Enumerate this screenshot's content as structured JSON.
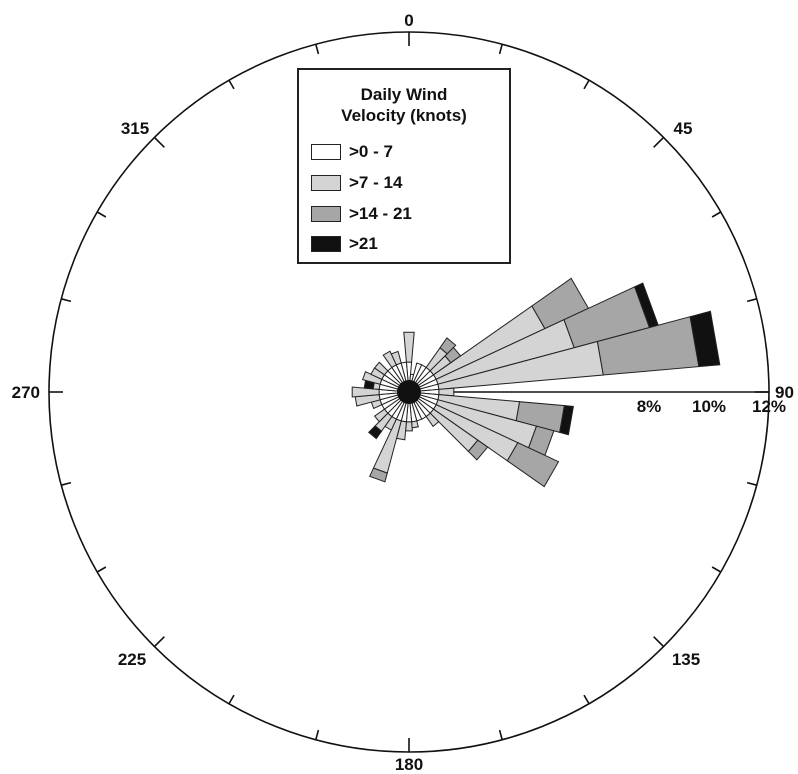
{
  "chart_data": {
    "type": "rose",
    "title_lines": [
      "Daily Wind",
      "Velocity (knots)"
    ],
    "direction_labels": [
      "0",
      "45",
      "90",
      "135",
      "180",
      "225",
      "270",
      "315"
    ],
    "radial_tick_labels": [
      "8%",
      "10%",
      "12%"
    ],
    "radial_unit": "%",
    "radial_max": 12,
    "classes": [
      {
        "name": ">0 - 7",
        "color": "#ffffff"
      },
      {
        "name": ">7 - 14",
        "color": "#d4d4d4"
      },
      {
        "name": ">14 - 21",
        "color": "#a6a6a6"
      },
      {
        "name": ">21",
        "color": "#111111"
      }
    ],
    "sector_width_deg": 10,
    "sectors": [
      {
        "direction": 0,
        "values": [
          1.0,
          1.0,
          0.0,
          0.0
        ]
      },
      {
        "direction": 10,
        "values": [
          0.6,
          0.0,
          0.0,
          0.0
        ]
      },
      {
        "direction": 20,
        "values": [
          1.0,
          0.0,
          0.0,
          0.0
        ]
      },
      {
        "direction": 30,
        "values": [
          1.0,
          0.0,
          0.0,
          0.0
        ]
      },
      {
        "direction": 40,
        "values": [
          1.0,
          0.8,
          0.4,
          0.0
        ]
      },
      {
        "direction": 50,
        "values": [
          1.0,
          0.7,
          0.4,
          0.0
        ]
      },
      {
        "direction": 60,
        "values": [
          1.0,
          4.0,
          1.6,
          0.0
        ]
      },
      {
        "direction": 70,
        "values": [
          1.0,
          4.7,
          2.6,
          0.3
        ]
      },
      {
        "direction": 80,
        "values": [
          1.0,
          5.5,
          3.2,
          0.7
        ]
      },
      {
        "direction": 90,
        "values": [
          1.0,
          0.5,
          0.0,
          0.0
        ]
      },
      {
        "direction": 100,
        "values": [
          1.0,
          2.7,
          1.5,
          0.3
        ]
      },
      {
        "direction": 110,
        "values": [
          1.0,
          3.4,
          0.6,
          0.0
        ]
      },
      {
        "direction": 120,
        "values": [
          1.0,
          3.0,
          1.5,
          0.0
        ]
      },
      {
        "direction": 130,
        "values": [
          1.0,
          1.8,
          0.4,
          0.0
        ]
      },
      {
        "direction": 140,
        "values": [
          1.0,
          0.4,
          0.0,
          0.0
        ]
      },
      {
        "direction": 150,
        "values": [
          1.0,
          0.0,
          0.0,
          0.0
        ]
      },
      {
        "direction": 160,
        "values": [
          1.0,
          0.0,
          0.0,
          0.0
        ]
      },
      {
        "direction": 170,
        "values": [
          1.0,
          0.2,
          0.0,
          0.0
        ]
      },
      {
        "direction": 180,
        "values": [
          1.0,
          0.3,
          0.0,
          0.0
        ]
      },
      {
        "direction": 190,
        "values": [
          1.0,
          0.6,
          0.0,
          0.0
        ]
      },
      {
        "direction": 200,
        "values": [
          1.0,
          1.8,
          0.3,
          0.0
        ]
      },
      {
        "direction": 210,
        "values": [
          1.0,
          0.4,
          0.0,
          0.0
        ]
      },
      {
        "direction": 220,
        "values": [
          1.0,
          0.6,
          0.0,
          0.3
        ]
      },
      {
        "direction": 230,
        "values": [
          1.0,
          0.4,
          0.0,
          0.0
        ]
      },
      {
        "direction": 240,
        "values": [
          1.0,
          0.0,
          0.0,
          0.0
        ]
      },
      {
        "direction": 250,
        "values": [
          1.0,
          0.3,
          0.0,
          0.0
        ]
      },
      {
        "direction": 260,
        "values": [
          1.0,
          0.8,
          0.0,
          0.0
        ]
      },
      {
        "direction": 270,
        "values": [
          1.0,
          0.9,
          0.0,
          0.0
        ]
      },
      {
        "direction": 280,
        "values": [
          1.0,
          0.2,
          0.0,
          0.3
        ]
      },
      {
        "direction": 290,
        "values": [
          1.0,
          0.6,
          0.0,
          0.0
        ]
      },
      {
        "direction": 300,
        "values": [
          1.0,
          0.4,
          0.0,
          0.0
        ]
      },
      {
        "direction": 310,
        "values": [
          1.0,
          0.4,
          0.0,
          0.0
        ]
      },
      {
        "direction": 320,
        "values": [
          1.0,
          0.0,
          0.0,
          0.0
        ]
      },
      {
        "direction": 330,
        "values": [
          1.0,
          0.5,
          0.0,
          0.0
        ]
      },
      {
        "direction": 340,
        "values": [
          1.0,
          0.4,
          0.0,
          0.0
        ]
      },
      {
        "direction": 350,
        "values": [
          1.0,
          0.0,
          0.0,
          0.0
        ]
      }
    ]
  }
}
